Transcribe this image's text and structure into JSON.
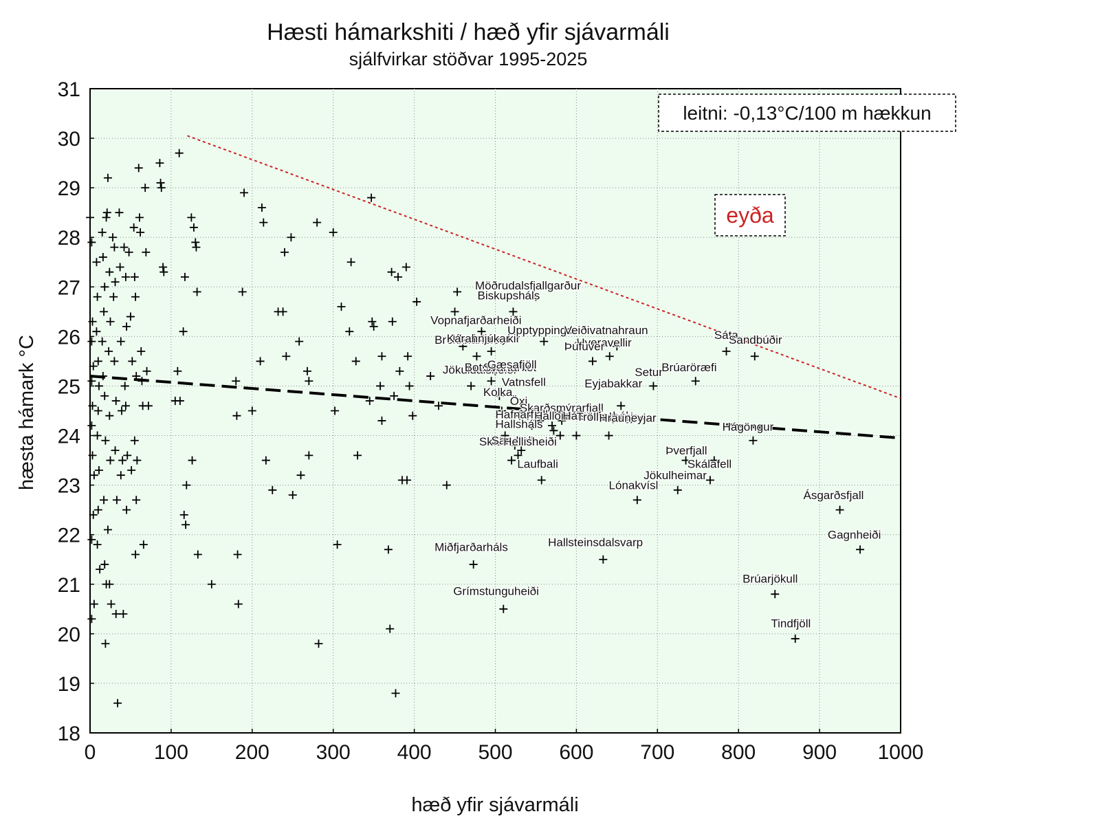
{
  "chart_data": {
    "type": "scatter",
    "title": "Hæsti hámarkshiti / hæð yfir sjávarmáli",
    "subtitle": "sjálfvirkar stöðvar 1995-2025",
    "xlabel": "hæð yfir sjávarmáli",
    "ylabel": "hæsta hámark °C",
    "xlim": [
      0,
      1000
    ],
    "ylim": [
      18,
      31
    ],
    "xticks": [
      "0",
      "100",
      "200",
      "300",
      "400",
      "500",
      "600",
      "700",
      "800",
      "900",
      "1000"
    ],
    "yticks": [
      "18",
      "19",
      "20",
      "21",
      "22",
      "23",
      "24",
      "25",
      "26",
      "27",
      "28",
      "29",
      "30",
      "31"
    ],
    "grid": true,
    "colors": {
      "plot_background": "#eefcf0",
      "points": "#000000",
      "upper_line": "#cc2222",
      "trend_line": "#000000"
    },
    "trend_annotation": "leitni: -0,13°C/100 m hækkun",
    "gap_annotation": "eyða",
    "trend_line": {
      "x": [
        0,
        1000
      ],
      "y": [
        25.2,
        23.95
      ]
    },
    "upper_envelope": {
      "x": [
        120,
        1000
      ],
      "y": [
        30.05,
        24.75
      ]
    },
    "points": [
      [
        0,
        28.4
      ],
      [
        2,
        27.9
      ],
      [
        3,
        26.3
      ],
      [
        2,
        25.9
      ],
      [
        4,
        25.4
      ],
      [
        2,
        25.1
      ],
      [
        3,
        24.6
      ],
      [
        2,
        24.2
      ],
      [
        3,
        23.6
      ],
      [
        5,
        23.2
      ],
      [
        4,
        22.4
      ],
      [
        2,
        21.9
      ],
      [
        5,
        20.6
      ],
      [
        2,
        20.3
      ],
      [
        8,
        27.5
      ],
      [
        9,
        26.8
      ],
      [
        8,
        26.1
      ],
      [
        10,
        25.5
      ],
      [
        11,
        25.0
      ],
      [
        10,
        24.5
      ],
      [
        9,
        24.0
      ],
      [
        11,
        23.3
      ],
      [
        10,
        22.5
      ],
      [
        9,
        21.8
      ],
      [
        12,
        21.3
      ],
      [
        15,
        28.1
      ],
      [
        16,
        27.6
      ],
      [
        18,
        27.0
      ],
      [
        17,
        26.5
      ],
      [
        15,
        25.9
      ],
      [
        16,
        25.2
      ],
      [
        18,
        24.8
      ],
      [
        19,
        23.9
      ],
      [
        17,
        22.7
      ],
      [
        18,
        21.4
      ],
      [
        20,
        21.0
      ],
      [
        19,
        19.8
      ],
      [
        22,
        29.2
      ],
      [
        20,
        28.4
      ],
      [
        21,
        28.5
      ],
      [
        24,
        27.3
      ],
      [
        25,
        26.3
      ],
      [
        23,
        25.7
      ],
      [
        24,
        24.4
      ],
      [
        25,
        23.5
      ],
      [
        22,
        22.1
      ],
      [
        24,
        21.0
      ],
      [
        26,
        20.6
      ],
      [
        28,
        28.0
      ],
      [
        30,
        27.8
      ],
      [
        31,
        27.1
      ],
      [
        29,
        26.8
      ],
      [
        30,
        25.5
      ],
      [
        32,
        24.7
      ],
      [
        31,
        23.7
      ],
      [
        33,
        22.7
      ],
      [
        32,
        20.4
      ],
      [
        34,
        18.6
      ],
      [
        36,
        28.5
      ],
      [
        37,
        27.4
      ],
      [
        38,
        25.9
      ],
      [
        39,
        24.5
      ],
      [
        40,
        23.5
      ],
      [
        38,
        23.2
      ],
      [
        41,
        20.4
      ],
      [
        42,
        27.8
      ],
      [
        44,
        27.2
      ],
      [
        45,
        26.2
      ],
      [
        43,
        25.0
      ],
      [
        44,
        24.6
      ],
      [
        46,
        23.6
      ],
      [
        45,
        22.5
      ],
      [
        48,
        27.7
      ],
      [
        50,
        26.4
      ],
      [
        52,
        25.5
      ],
      [
        51,
        23.3
      ],
      [
        54,
        28.2
      ],
      [
        55,
        27.2
      ],
      [
        56,
        26.8
      ],
      [
        57,
        25.2
      ],
      [
        55,
        23.9
      ],
      [
        58,
        23.5
      ],
      [
        57,
        22.7
      ],
      [
        56,
        21.6
      ],
      [
        60,
        29.4
      ],
      [
        61,
        28.4
      ],
      [
        62,
        28.1
      ],
      [
        63,
        25.7
      ],
      [
        64,
        25.1
      ],
      [
        65,
        24.6
      ],
      [
        66,
        21.8
      ],
      [
        68,
        29.0
      ],
      [
        69,
        27.7
      ],
      [
        70,
        25.3
      ],
      [
        72,
        24.6
      ],
      [
        86,
        29.5
      ],
      [
        87,
        29.1
      ],
      [
        88,
        29.0
      ],
      [
        90,
        27.4
      ],
      [
        91,
        27.3
      ],
      [
        105,
        24.7
      ],
      [
        108,
        25.3
      ],
      [
        110,
        29.7
      ],
      [
        111,
        24.7
      ],
      [
        115,
        26.1
      ],
      [
        117,
        27.2
      ],
      [
        116,
        22.4
      ],
      [
        118,
        22.2
      ],
      [
        119,
        23.0
      ],
      [
        125,
        28.4
      ],
      [
        128,
        28.2
      ],
      [
        130,
        27.9
      ],
      [
        131,
        27.8
      ],
      [
        132,
        26.9
      ],
      [
        133,
        21.6
      ],
      [
        126,
        23.5
      ],
      [
        150,
        21.0
      ],
      [
        180,
        25.1
      ],
      [
        181,
        24.4
      ],
      [
        182,
        21.6
      ],
      [
        183,
        20.6
      ],
      [
        188,
        26.9
      ],
      [
        190,
        28.9
      ],
      [
        200,
        24.5
      ],
      [
        210,
        25.5
      ],
      [
        212,
        28.6
      ],
      [
        214,
        28.3
      ],
      [
        217,
        23.5
      ],
      [
        225,
        22.9
      ],
      [
        232,
        26.5
      ],
      [
        238,
        26.5
      ],
      [
        240,
        27.7
      ],
      [
        242,
        25.6
      ],
      [
        248,
        28.0
      ],
      [
        250,
        22.8
      ],
      [
        258,
        25.9
      ],
      [
        260,
        23.2
      ],
      [
        268,
        25.3
      ],
      [
        270,
        25.1
      ],
      [
        270,
        23.6
      ],
      [
        280,
        28.3
      ],
      [
        282,
        19.8
      ],
      [
        300,
        28.1
      ],
      [
        302,
        24.5
      ],
      [
        305,
        21.8
      ],
      [
        310,
        26.6
      ],
      [
        320,
        26.1
      ],
      [
        322,
        27.5
      ],
      [
        328,
        25.5
      ],
      [
        330,
        23.6
      ],
      [
        345,
        24.7
      ],
      [
        347,
        28.8
      ],
      [
        348,
        26.3
      ],
      [
        350,
        26.2
      ],
      [
        358,
        25.0
      ],
      [
        360,
        25.6
      ],
      [
        360,
        24.3
      ],
      [
        368,
        21.7
      ],
      [
        370,
        20.1
      ],
      [
        372,
        27.3
      ],
      [
        373,
        26.3
      ],
      [
        375,
        24.8
      ],
      [
        377,
        18.8
      ],
      [
        380,
        27.2
      ],
      [
        382,
        25.3
      ],
      [
        385,
        23.1
      ],
      [
        390,
        27.4
      ],
      [
        391,
        23.1
      ],
      [
        392,
        25.6
      ],
      [
        394,
        25.0
      ],
      [
        398,
        24.4
      ],
      [
        403,
        26.7
      ],
      [
        420,
        25.2
      ],
      [
        430,
        24.6
      ],
      [
        440,
        23.0
      ],
      [
        450,
        26.5
      ],
      [
        453,
        26.9
      ],
      [
        460,
        25.8
      ],
      [
        470,
        25.0
      ],
      [
        473,
        21.4
      ],
      [
        477,
        25.6
      ],
      [
        483,
        26.1
      ],
      [
        495,
        25.1
      ],
      [
        495,
        25.7
      ],
      [
        500,
        25.3
      ],
      [
        505,
        24.8
      ],
      [
        508,
        24.5
      ],
      [
        510,
        20.5
      ],
      [
        512,
        24.0
      ],
      [
        520,
        23.5
      ],
      [
        522,
        26.5
      ],
      [
        524,
        23.8
      ],
      [
        528,
        23.6
      ],
      [
        530,
        24.4
      ],
      [
        532,
        23.7
      ],
      [
        540,
        24.4
      ],
      [
        545,
        24.2
      ],
      [
        550,
        26.8
      ],
      [
        555,
        24.3
      ],
      [
        557,
        23.1
      ],
      [
        560,
        25.9
      ],
      [
        570,
        24.2
      ],
      [
        572,
        24.1
      ],
      [
        580,
        24.0
      ],
      [
        582,
        24.3
      ],
      [
        590,
        24.4
      ],
      [
        600,
        24.0
      ],
      [
        620,
        25.5
      ],
      [
        633,
        21.5
      ],
      [
        640,
        24.0
      ],
      [
        641,
        25.6
      ],
      [
        650,
        25.8
      ],
      [
        655,
        24.6
      ],
      [
        675,
        22.7
      ],
      [
        695,
        25.0
      ],
      [
        725,
        22.9
      ],
      [
        735,
        23.5
      ],
      [
        747,
        25.1
      ],
      [
        765,
        23.1
      ],
      [
        770,
        23.5
      ],
      [
        785,
        25.7
      ],
      [
        818,
        23.9
      ],
      [
        820,
        25.6
      ],
      [
        845,
        20.8
      ],
      [
        870,
        19.9
      ],
      [
        925,
        22.5
      ],
      [
        950,
        21.7
      ]
    ],
    "labels": [
      {
        "text": "Möðrudalsfjallgarður",
        "x": 475,
        "y": 26.95
      },
      {
        "text": "Biskupsháls",
        "x": 478,
        "y": 26.75
      },
      {
        "text": "Vopnafjarðarheiði",
        "x": 420,
        "y": 26.25
      },
      {
        "text": "Brekknaheiði",
        "x": 425,
        "y": 25.85
      },
      {
        "text": "Þeistareykir",
        "x": 455,
        "y": 25.88
      },
      {
        "text": "Upptyppingar",
        "x": 515,
        "y": 26.05
      },
      {
        "text": "Kárahnjúkar",
        "x": 440,
        "y": 25.88
      },
      {
        "text": "Veiðivatnahraun",
        "x": 585,
        "y": 26.05
      },
      {
        "text": "Hveravellir",
        "x": 600,
        "y": 25.8
      },
      {
        "text": "Þúfuver",
        "x": 585,
        "y": 25.72
      },
      {
        "text": "Jökuldalsheiði",
        "x": 435,
        "y": 25.25
      },
      {
        "text": "Botnsvatn",
        "x": 462,
        "y": 25.3
      },
      {
        "text": "Svartárkot",
        "x": 485,
        "y": 25.3
      },
      {
        "text": "Gæsafjöll",
        "x": 490,
        "y": 25.35
      },
      {
        "text": "Sáta",
        "x": 770,
        "y": 25.95
      },
      {
        "text": "Sandbúðir",
        "x": 788,
        "y": 25.85
      },
      {
        "text": "Setur",
        "x": 672,
        "y": 25.2
      },
      {
        "text": "Brúaröræfi",
        "x": 705,
        "y": 25.3
      },
      {
        "text": "Vatnsfell",
        "x": 508,
        "y": 25.0
      },
      {
        "text": "Eyjabakkar",
        "x": 610,
        "y": 24.97
      },
      {
        "text": "Kolka",
        "x": 485,
        "y": 24.8
      },
      {
        "text": "Öxi",
        "x": 518,
        "y": 24.62
      },
      {
        "text": "Skarðsmýrarfjall",
        "x": 530,
        "y": 24.48
      },
      {
        "text": "Hafnarfjall",
        "x": 500,
        "y": 24.35
      },
      {
        "text": "Hallormsstaðarháls",
        "x": 548,
        "y": 24.32
      },
      {
        "text": "Hálsar",
        "x": 583,
        "y": 24.32
      },
      {
        "text": "Trölladyngja",
        "x": 600,
        "y": 24.3
      },
      {
        "text": "Hrauneyjar",
        "x": 628,
        "y": 24.28
      },
      {
        "text": "Hallsháls",
        "x": 500,
        "y": 24.15
      },
      {
        "text": "Hágöngur",
        "x": 780,
        "y": 24.1
      },
      {
        "text": "Skálafell",
        "x": 480,
        "y": 23.8
      },
      {
        "text": "Sandfell",
        "x": 495,
        "y": 23.82
      },
      {
        "text": "Hellisheiði",
        "x": 510,
        "y": 23.8
      },
      {
        "text": "Þverfjall",
        "x": 710,
        "y": 23.62
      },
      {
        "text": "Laufbali",
        "x": 527,
        "y": 23.35
      },
      {
        "text": "Skálafell",
        "x": 737,
        "y": 23.35
      },
      {
        "text": "Jökulheimar",
        "x": 683,
        "y": 23.12
      },
      {
        "text": "Lónakvísl",
        "x": 640,
        "y": 22.92
      },
      {
        "text": "Ásgarðsfjall",
        "x": 880,
        "y": 22.72
      },
      {
        "text": "Gagnheiði",
        "x": 910,
        "y": 21.92
      },
      {
        "text": "Miðfjarðarháls",
        "x": 425,
        "y": 21.67
      },
      {
        "text": "Hallsteinsdalsvarp",
        "x": 565,
        "y": 21.77
      },
      {
        "text": "Brúarjökull",
        "x": 805,
        "y": 21.03
      },
      {
        "text": "Grímstunguheiði",
        "x": 448,
        "y": 20.78
      },
      {
        "text": "Tindfjöll",
        "x": 840,
        "y": 20.13
      }
    ]
  }
}
